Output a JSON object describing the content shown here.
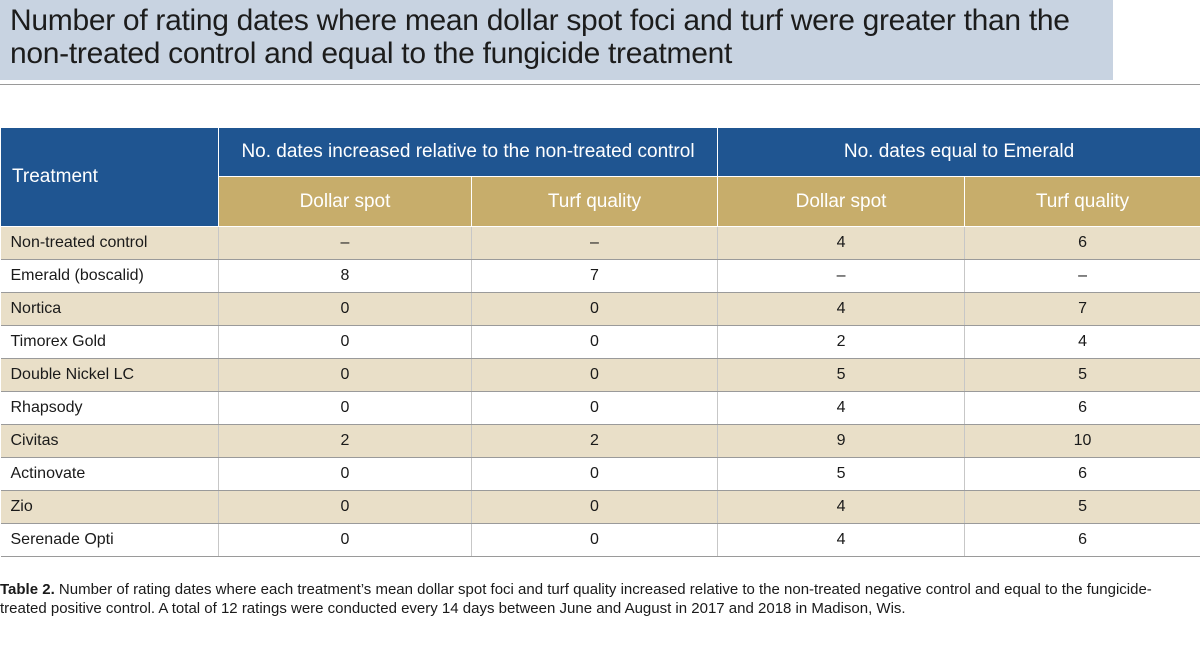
{
  "title": "Number of rating dates where mean dollar spot foci and turf were greater than the non-treated control and equal to the fungicide treatment",
  "table": {
    "treatment_header": "Treatment",
    "group_headers": [
      "No. dates increased relative to the non-treated control",
      "No. dates equal to Emerald"
    ],
    "sub_headers": [
      "Dollar spot",
      "Turf quality",
      "Dollar spot",
      "Turf quality"
    ],
    "rows": [
      {
        "treatment": "Non-treated control",
        "inc_dollar": "–",
        "inc_turf": "–",
        "eq_dollar": "4",
        "eq_turf": "6"
      },
      {
        "treatment": "Emerald (boscalid)",
        "inc_dollar": "8",
        "inc_turf": "7",
        "eq_dollar": "–",
        "eq_turf": "–"
      },
      {
        "treatment": "Nortica",
        "inc_dollar": "0",
        "inc_turf": "0",
        "eq_dollar": "4",
        "eq_turf": "7"
      },
      {
        "treatment": "Timorex Gold",
        "inc_dollar": "0",
        "inc_turf": "0",
        "eq_dollar": "2",
        "eq_turf": "4"
      },
      {
        "treatment": "Double Nickel LC",
        "inc_dollar": "0",
        "inc_turf": "0",
        "eq_dollar": "5",
        "eq_turf": "5"
      },
      {
        "treatment": "Rhapsody",
        "inc_dollar": "0",
        "inc_turf": "0",
        "eq_dollar": "4",
        "eq_turf": "6"
      },
      {
        "treatment": "Civitas",
        "inc_dollar": "2",
        "inc_turf": "2",
        "eq_dollar": "9",
        "eq_turf": "10"
      },
      {
        "treatment": "Actinovate",
        "inc_dollar": "0",
        "inc_turf": "0",
        "eq_dollar": "5",
        "eq_turf": "6"
      },
      {
        "treatment": "Zio",
        "inc_dollar": "0",
        "inc_turf": "0",
        "eq_dollar": "4",
        "eq_turf": "5"
      },
      {
        "treatment": "Serenade Opti",
        "inc_dollar": "0",
        "inc_turf": "0",
        "eq_dollar": "4",
        "eq_turf": "6"
      }
    ]
  },
  "caption": {
    "label": "Table 2.",
    "text": " Number of rating dates where each treatment’s mean dollar spot foci and turf quality increased relative to the non-treated negative control and equal to the fungicide-treated positive control. A total of 12 ratings were conducted every 14 days between June and August in 2017 and 2018 in Madison, Wis."
  },
  "colors": {
    "title_bg": "#c8d3e1",
    "header_blue": "#1f5591",
    "header_tan": "#c7ad6b",
    "row_shade": "#e9dfc8"
  }
}
